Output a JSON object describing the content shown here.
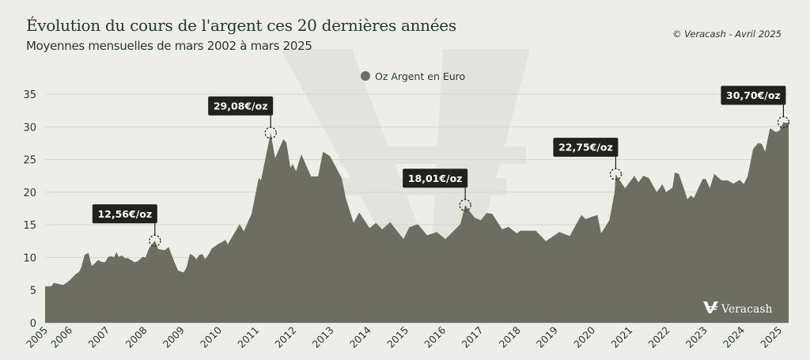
{
  "header": {
    "title": "Évolution du cours de l'argent ces 20 dernières années",
    "subtitle": "Moyennes mensuelles de mars 2002 à mars 2025",
    "credit": "© Veracash - Avril 2025"
  },
  "logo": {
    "text": "Veracash"
  },
  "colors": {
    "background": "#eeeee9",
    "area": "#6d6d62",
    "title": "#1f3a2b",
    "label_box": "#22221a",
    "grid": "#d6d6d0"
  },
  "chart_data": {
    "type": "area",
    "title": "Évolution du cours de l'argent ces 20 dernières années",
    "subtitle": "Moyennes mensuelles de mars 2002 à mars 2025",
    "xlabel": "",
    "ylabel": "",
    "xlim": [
      2005.34,
      2025.25
    ],
    "ylim": [
      0,
      35
    ],
    "grid": true,
    "legend_position": "top-center",
    "y_ticks": [
      0,
      5,
      10,
      15,
      20,
      25,
      30,
      35
    ],
    "x_ticks": [
      "2005",
      "2006",
      "2007",
      "2008",
      "2009",
      "2010",
      "2011",
      "2012",
      "2013",
      "2014",
      "2015",
      "2016",
      "2017",
      "2018",
      "2019",
      "2020",
      "2021",
      "2022",
      "2023",
      "2024",
      "2025"
    ],
    "series": [
      {
        "name": "Oz Argent en Euro",
        "x": [
          2005.34,
          2005.51,
          2005.57,
          2005.83,
          2006.0,
          2006.15,
          2006.25,
          2006.31,
          2006.4,
          2006.5,
          2006.59,
          2006.65,
          2006.76,
          2006.87,
          2006.95,
          2007.03,
          2007.12,
          2007.18,
          2007.25,
          2007.31,
          2007.4,
          2007.48,
          2007.56,
          2007.73,
          2007.82,
          2007.95,
          2008.03,
          2008.12,
          2008.28,
          2008.37,
          2008.54,
          2008.65,
          2008.79,
          2008.9,
          2009.05,
          2009.13,
          2009.22,
          2009.32,
          2009.39,
          2009.47,
          2009.56,
          2009.62,
          2009.7,
          2009.81,
          2009.96,
          2010.06,
          2010.17,
          2010.23,
          2010.55,
          2010.66,
          2010.87,
          2011.06,
          2011.12,
          2011.38,
          2011.5,
          2011.72,
          2011.8,
          2011.91,
          2011.97,
          2012.06,
          2012.2,
          2012.46,
          2012.65,
          2012.78,
          2012.97,
          2013.28,
          2013.39,
          2013.6,
          2013.75,
          2014.03,
          2014.2,
          2014.37,
          2014.58,
          2014.94,
          2015.09,
          2015.32,
          2015.57,
          2015.83,
          2016.06,
          2016.46,
          2016.59,
          2016.84,
          2017.01,
          2017.16,
          2017.31,
          2017.58,
          2017.75,
          2017.97,
          2018.07,
          2018.48,
          2018.75,
          2019.11,
          2019.39,
          2019.7,
          2019.81,
          2020.13,
          2020.23,
          2020.45,
          2020.59,
          2020.62,
          2020.87,
          2021.12,
          2021.23,
          2021.36,
          2021.5,
          2021.72,
          2021.87,
          2021.97,
          2022.14,
          2022.2,
          2022.31,
          2022.46,
          2022.54,
          2022.63,
          2022.71,
          2022.95,
          2023.03,
          2023.14,
          2023.26,
          2023.45,
          2023.62,
          2023.77,
          2023.94,
          2024.05,
          2024.15,
          2024.3,
          2024.43,
          2024.53,
          2024.62,
          2024.75,
          2024.9,
          2025.0,
          2025.11,
          2025.17,
          2025.25
        ],
        "values": [
          5.6,
          5.6,
          6.1,
          5.8,
          6.5,
          7.4,
          7.8,
          8.5,
          10.4,
          10.7,
          8.7,
          9.0,
          9.6,
          9.3,
          9.3,
          10.1,
          10.2,
          10.0,
          10.8,
          10.1,
          10.3,
          9.9,
          9.9,
          9.3,
          9.4,
          10.1,
          10.0,
          11.4,
          12.56,
          11.3,
          11.1,
          11.6,
          9.5,
          8.0,
          7.7,
          8.5,
          10.6,
          10.2,
          9.7,
          10.4,
          10.5,
          9.7,
          10.3,
          11.4,
          12.0,
          12.3,
          12.7,
          12.0,
          15.1,
          14.0,
          16.7,
          22.2,
          21.8,
          29.08,
          25.2,
          28.1,
          27.6,
          23.7,
          24.3,
          23.2,
          25.8,
          22.4,
          22.4,
          26.2,
          25.5,
          22.2,
          19.1,
          15.3,
          16.9,
          14.5,
          15.3,
          14.3,
          15.4,
          12.8,
          14.6,
          15.1,
          13.4,
          13.9,
          12.8,
          15.1,
          18.01,
          16.1,
          15.7,
          16.8,
          16.7,
          14.3,
          14.7,
          13.7,
          14.1,
          14.1,
          12.5,
          13.9,
          13.3,
          16.5,
          15.9,
          16.5,
          13.7,
          15.7,
          20.0,
          22.75,
          20.6,
          22.5,
          21.5,
          22.5,
          22.2,
          20.0,
          21.2,
          20.0,
          20.7,
          23.0,
          22.8,
          20.3,
          18.9,
          19.5,
          19.1,
          22.0,
          22.0,
          20.6,
          22.8,
          21.8,
          21.8,
          21.3,
          21.9,
          21.2,
          22.4,
          26.6,
          27.5,
          27.4,
          26.2,
          29.8,
          29.2,
          29.4,
          30.7,
          30.6,
          30.6
        ]
      }
    ],
    "annotations": [
      {
        "x": 2008.28,
        "y": 12.56,
        "label": "12,56€/oz"
      },
      {
        "x": 2011.38,
        "y": 29.08,
        "label": "29,08€/oz"
      },
      {
        "x": 2016.59,
        "y": 18.01,
        "label": "18,01€/oz"
      },
      {
        "x": 2020.62,
        "y": 22.75,
        "label": "22,75€/oz"
      },
      {
        "x": 2025.11,
        "y": 30.7,
        "label": "30,70€/oz"
      }
    ]
  }
}
